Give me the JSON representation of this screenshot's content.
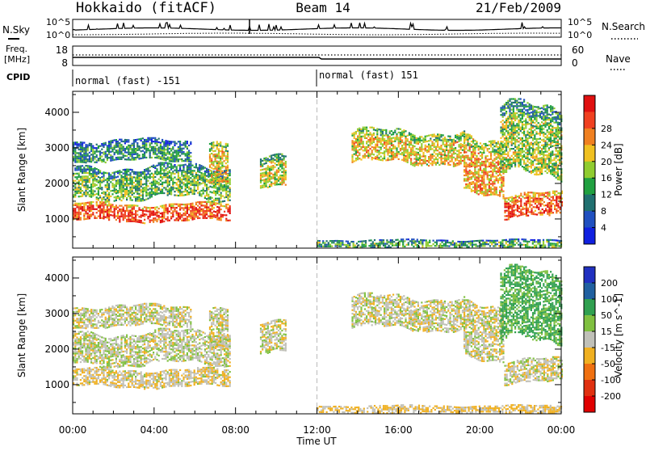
{
  "header": {
    "station": "Hokkaido (fitACF)",
    "beam": "Beam 14",
    "date": "21/Feb/2009"
  },
  "noise_panel": {
    "left_label": "N.Sky",
    "right_label": "N.Search",
    "ytick_top": "10^5",
    "ytick_bottom": "10^0"
  },
  "freq_panel": {
    "left_label_1": "Freq.",
    "left_label_2": "[MHz]",
    "left_tick_top": "18",
    "left_tick_bottom": "8",
    "right_label": "Nave",
    "right_tick_top": "60",
    "right_tick_bottom": "0"
  },
  "cpid": {
    "label": "CPID",
    "segments": [
      {
        "start_hour": 0,
        "text": "normal (fast) -151"
      },
      {
        "start_hour": 12,
        "text": "normal (fast) 151"
      }
    ]
  },
  "axes": {
    "ylabel": "Slant Range [km]",
    "xlabel": "Time UT",
    "xticks": [
      "00:00",
      "04:00",
      "08:00",
      "12:00",
      "16:00",
      "20:00",
      "00:00"
    ],
    "xtick_hours": [
      0,
      4,
      8,
      12,
      16,
      20,
      24
    ],
    "yticks": [
      "1000",
      "2000",
      "3000",
      "4000"
    ],
    "ytick_values": [
      1000,
      2000,
      3000,
      4000
    ],
    "yrange_km": [
      180,
      4590
    ],
    "xrange_hours": [
      0,
      24
    ],
    "marker_hour": 12
  },
  "power_colorbar": {
    "title": "Power [dB]",
    "ticks": [
      "4",
      "8",
      "12",
      "16",
      "20",
      "24",
      "28"
    ],
    "colors": [
      "#1020e0",
      "#2050c0",
      "#207070",
      "#20a040",
      "#90cc30",
      "#f0c020",
      "#f08020",
      "#f04020",
      "#e01010"
    ]
  },
  "velocity_colorbar": {
    "title": "Velocity [m s^-1]",
    "ticks": [
      "200",
      "100",
      "50",
      "15",
      "-15",
      "-50",
      "-100",
      "-200"
    ],
    "colors": [
      "#2030c0",
      "#2060a0",
      "#30a050",
      "#80c040",
      "#c0c0b8",
      "#f0b020",
      "#f07010",
      "#e03010",
      "#e00000"
    ]
  },
  "chart_data": {
    "type": "heatmap",
    "title": "Hokkaido (fitACF) Beam 14 21/Feb/2009",
    "xlabel": "Time UT",
    "ylabel": "Slant Range [km]",
    "x_unit": "hour UT",
    "xlim": [
      0,
      24
    ],
    "ylim": [
      180,
      4590
    ],
    "echo_regions": [
      {
        "t0": 0.0,
        "t1": 7.7,
        "r0": 900,
        "r1": 1500,
        "power_db": 28,
        "velocity": -10
      },
      {
        "t0": 0.0,
        "t1": 7.7,
        "r0": 1500,
        "r1": 2600,
        "power_db": 14,
        "velocity": 5
      },
      {
        "t0": 0.0,
        "t1": 5.8,
        "r0": 2600,
        "r1": 3300,
        "power_db": 10,
        "velocity": 0
      },
      {
        "t0": 6.7,
        "t1": 7.6,
        "r0": 1800,
        "r1": 3200,
        "power_db": 20,
        "velocity": 0
      },
      {
        "t0": 9.2,
        "t1": 10.5,
        "r0": 1900,
        "r1": 3000,
        "power_db": 18,
        "velocity": 0
      },
      {
        "t0": 12.0,
        "t1": 24.0,
        "r0": 200,
        "r1": 450,
        "power_db": 12,
        "velocity": -20
      },
      {
        "t0": 13.7,
        "t1": 19.2,
        "r0": 2500,
        "r1": 3600,
        "power_db": 20,
        "velocity": 0
      },
      {
        "t0": 19.2,
        "t1": 21.2,
        "r0": 1500,
        "r1": 3400,
        "power_db": 22,
        "velocity": 0
      },
      {
        "t0": 21.2,
        "t1": 24.0,
        "r0": 1000,
        "r1": 1800,
        "power_db": 28,
        "velocity": 0
      },
      {
        "t0": 21.0,
        "t1": 24.0,
        "r0": 2000,
        "r1": 4400,
        "power_db": 16,
        "velocity": 60
      }
    ]
  }
}
